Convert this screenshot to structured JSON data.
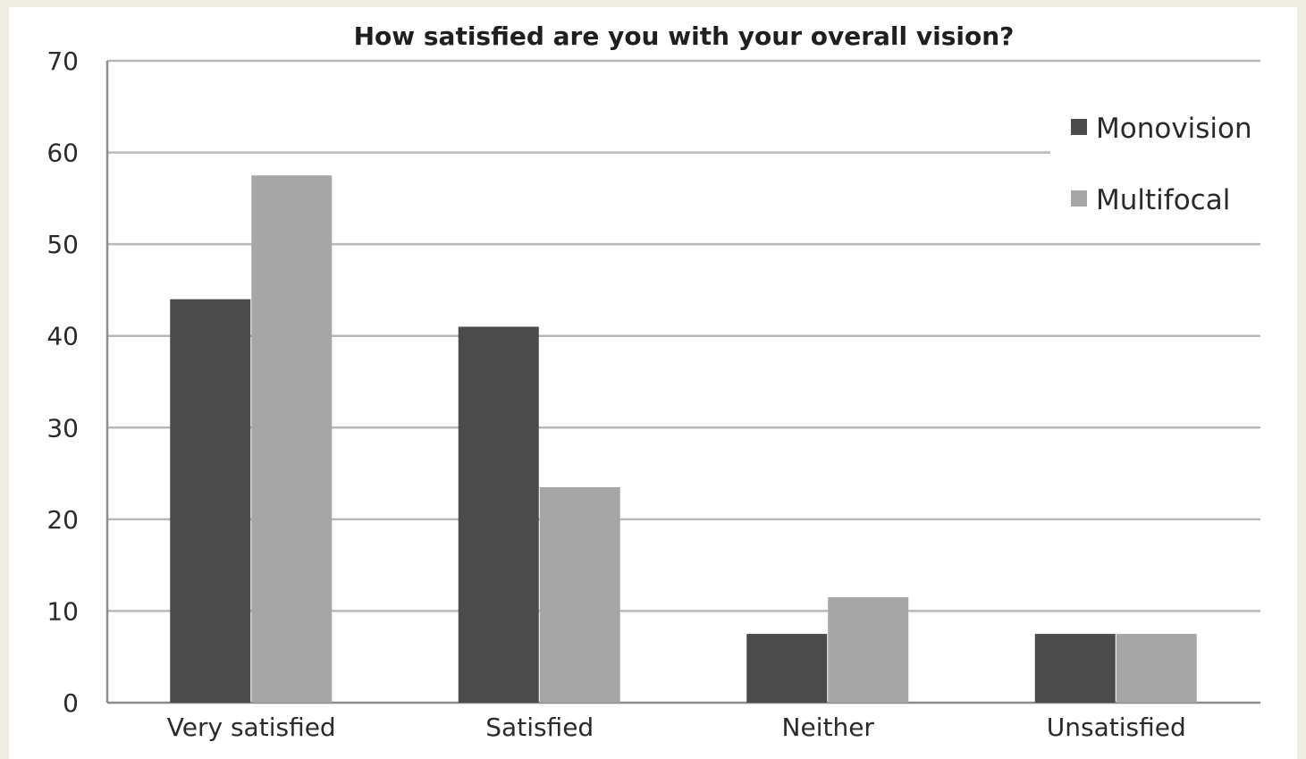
{
  "chart_data": {
    "type": "bar",
    "title": "How satisfied are you with your overall vision?",
    "xlabel": "",
    "ylabel": "",
    "categories": [
      "Very satisfied",
      "Satisfied",
      "Neither",
      "Unsatisfied"
    ],
    "series": [
      {
        "name": "Monovision",
        "values": [
          44,
          41,
          7.5,
          7.5
        ],
        "color": "#4b4b4b"
      },
      {
        "name": "Multifocal",
        "values": [
          57.5,
          23.5,
          11.5,
          7.5
        ],
        "color": "#a6a6a6"
      }
    ],
    "ylim": [
      0,
      70
    ],
    "yticks": [
      "0",
      "10",
      "20",
      "30",
      "40",
      "50",
      "60",
      "70"
    ],
    "grid": true,
    "legend_position": "top-right"
  }
}
